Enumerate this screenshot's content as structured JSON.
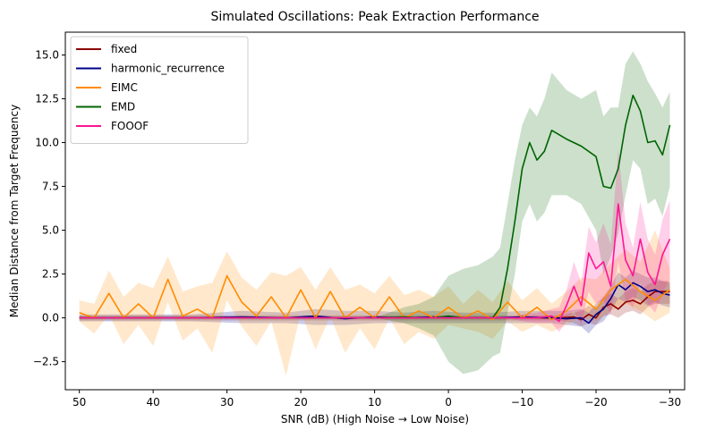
{
  "chart_data": {
    "type": "line",
    "title": "Simulated Oscillations: Peak Extraction Performance",
    "xlabel": "SNR (dB) (High Noise → Low Noise)",
    "ylabel": "Median Distance from Target Frequency",
    "xlim": [
      51.9,
      -32.0
    ],
    "ylim": [
      -4.1,
      16.3
    ],
    "xticks": [
      50,
      40,
      30,
      20,
      10,
      0,
      -10,
      -20,
      -30
    ],
    "xtick_labels": [
      "50",
      "40",
      "30",
      "20",
      "10",
      "0",
      "−10",
      "−20",
      "−30"
    ],
    "yticks": [
      -2.5,
      0.0,
      2.5,
      5.0,
      7.5,
      10.0,
      12.5,
      15.0
    ],
    "ytick_labels": [
      "−2.5",
      "0.0",
      "2.5",
      "5.0",
      "7.5",
      "10.0",
      "12.5",
      "15.0"
    ],
    "grid": false,
    "legend_position": "top-left",
    "series": [
      {
        "name": "fixed",
        "color": "#8b0000",
        "x": [
          50,
          -15,
          -17,
          -18,
          -19,
          -20,
          -21,
          -22,
          -23,
          -24,
          -25,
          -26,
          -27,
          -28,
          -29,
          -30
        ],
        "y": [
          0.0,
          0.0,
          0.05,
          -0.1,
          0.2,
          0.0,
          0.6,
          0.8,
          0.5,
          0.9,
          1.0,
          0.8,
          1.2,
          1.5,
          1.5,
          1.5
        ],
        "lower": [
          -0.15,
          -0.15,
          -0.3,
          -0.5,
          -0.3,
          -0.4,
          0.1,
          0.2,
          0.0,
          0.3,
          0.4,
          0.2,
          0.6,
          0.8,
          0.8,
          0.8
        ],
        "upper": [
          0.15,
          0.15,
          0.3,
          0.4,
          0.7,
          0.5,
          1.2,
          1.4,
          1.1,
          1.5,
          1.7,
          1.5,
          1.9,
          2.1,
          2.1,
          2.1
        ]
      },
      {
        "name": "harmonic_recurrence",
        "color": "#00008b",
        "x": [
          50,
          35,
          28,
          22,
          18,
          14,
          10,
          6,
          2,
          -2,
          -6,
          -10,
          -14,
          -16,
          -18,
          -19,
          -20,
          -21,
          -22,
          -23,
          -24,
          -25,
          -26,
          -27,
          -28,
          -29,
          -30
        ],
        "y": [
          0.0,
          0.0,
          0.05,
          0.0,
          0.1,
          -0.05,
          0.05,
          0.0,
          0.05,
          0.0,
          0.0,
          0.05,
          0.0,
          -0.05,
          0.0,
          -0.3,
          0.2,
          0.5,
          1.1,
          1.9,
          1.6,
          2.0,
          1.8,
          1.5,
          1.6,
          1.4,
          1.3
        ],
        "lower": [
          -0.2,
          -0.2,
          -0.3,
          -0.3,
          -0.4,
          -0.4,
          -0.3,
          -0.3,
          -0.3,
          -0.3,
          -0.3,
          -0.3,
          -0.3,
          -0.4,
          -0.5,
          -0.9,
          -0.4,
          -0.2,
          0.4,
          1.1,
          0.9,
          1.2,
          1.0,
          0.7,
          0.9,
          0.7,
          0.6
        ],
        "upper": [
          0.2,
          0.2,
          0.4,
          0.3,
          0.5,
          0.4,
          0.4,
          0.3,
          0.4,
          0.3,
          0.3,
          0.4,
          0.4,
          0.4,
          0.5,
          0.3,
          0.8,
          1.2,
          1.8,
          2.6,
          2.3,
          2.7,
          2.5,
          2.3,
          2.3,
          2.1,
          2.0
        ]
      },
      {
        "name": "EIMC",
        "color": "#ff8c00",
        "x": [
          50,
          48,
          46,
          44,
          42,
          40,
          38,
          36,
          34,
          32,
          30,
          28,
          26,
          24,
          22,
          20,
          18,
          16,
          14,
          12,
          10,
          8,
          6,
          4,
          2,
          0,
          -2,
          -4,
          -6,
          -8,
          -10,
          -12,
          -14,
          -16,
          -18,
          -20,
          -22,
          -24,
          -26,
          -28,
          -30
        ],
        "y": [
          0.3,
          0.0,
          1.4,
          0.0,
          0.8,
          0.0,
          2.2,
          0.1,
          0.5,
          0.0,
          2.4,
          0.9,
          0.1,
          1.2,
          0.0,
          1.6,
          0.0,
          1.5,
          0.0,
          0.6,
          0.0,
          1.2,
          0.0,
          0.4,
          0.0,
          0.6,
          0.0,
          0.4,
          -0.1,
          0.9,
          0.0,
          0.6,
          -0.1,
          0.4,
          1.2,
          0.5,
          1.6,
          2.2,
          1.5,
          1.0,
          1.6
        ],
        "lower": [
          -0.2,
          -0.9,
          0.2,
          -1.5,
          -0.4,
          -1.6,
          0.9,
          -1.3,
          -0.6,
          -2.0,
          1.0,
          -0.5,
          -1.6,
          -0.2,
          -3.3,
          0.3,
          -1.8,
          0.1,
          -2.0,
          -0.6,
          -1.8,
          0.0,
          -1.5,
          -0.8,
          -1.2,
          -0.4,
          -0.6,
          -0.8,
          -1.2,
          -0.2,
          -0.8,
          -0.4,
          -0.8,
          -0.4,
          0.1,
          -0.2,
          0.4,
          0.8,
          0.4,
          -0.2,
          0.3
        ],
        "upper": [
          1.0,
          0.8,
          2.7,
          1.2,
          2.0,
          1.7,
          3.5,
          1.5,
          1.8,
          2.0,
          3.8,
          2.3,
          1.6,
          2.6,
          2.4,
          2.9,
          1.6,
          2.9,
          1.6,
          1.9,
          1.4,
          2.4,
          1.3,
          1.6,
          1.2,
          1.8,
          0.8,
          1.6,
          0.9,
          2.1,
          1.0,
          1.7,
          0.8,
          1.5,
          2.3,
          2.2,
          3.1,
          3.9,
          3.2,
          5.0,
          2.8
        ]
      },
      {
        "name": "EMD",
        "color": "#006400",
        "x": [
          50,
          10,
          6,
          4,
          2,
          0,
          -2,
          -4,
          -6,
          -7,
          -8,
          -9,
          -10,
          -11,
          -12,
          -13,
          -14,
          -16,
          -18,
          -20,
          -21,
          -22,
          -23,
          -24,
          -25,
          -26,
          -27,
          -28,
          -29,
          -30
        ],
        "y": [
          0.0,
          0.0,
          0.05,
          0.0,
          0.0,
          0.1,
          0.0,
          0.0,
          0.0,
          0.6,
          2.8,
          5.5,
          8.5,
          10.0,
          9.0,
          9.5,
          10.7,
          10.2,
          9.8,
          9.2,
          7.5,
          7.4,
          8.5,
          11.0,
          12.7,
          11.8,
          10.0,
          10.1,
          9.3,
          11.0
        ],
        "lower": [
          0.0,
          0.0,
          -0.3,
          -0.6,
          -1.0,
          -2.5,
          -3.2,
          -3.0,
          -2.2,
          -2.0,
          0.3,
          2.5,
          5.5,
          6.5,
          5.5,
          6.0,
          7.0,
          7.0,
          6.5,
          5.0,
          2.5,
          3.5,
          4.8,
          7.0,
          9.0,
          8.5,
          6.5,
          6.8,
          5.8,
          7.5
        ],
        "upper": [
          0.0,
          0.0,
          0.6,
          0.8,
          1.2,
          2.4,
          2.8,
          3.0,
          3.5,
          4.0,
          6.5,
          9.0,
          11.0,
          12.0,
          11.5,
          12.5,
          14.0,
          13.0,
          12.5,
          13.0,
          11.5,
          12.0,
          12.0,
          14.5,
          15.2,
          14.5,
          13.5,
          12.8,
          12.0,
          12.9
        ]
      },
      {
        "name": "FOOOF",
        "color": "#ff1493",
        "x": [
          50,
          -8,
          -10,
          -12,
          -14,
          -15,
          -16,
          -17,
          -18,
          -19,
          -20,
          -21,
          -22,
          -23,
          -24,
          -25,
          -26,
          -27,
          -28,
          -29,
          -30
        ],
        "y": [
          0.0,
          0.0,
          0.0,
          0.0,
          0.1,
          -0.2,
          0.7,
          1.8,
          0.7,
          3.7,
          2.8,
          3.2,
          1.8,
          6.5,
          3.3,
          2.4,
          4.5,
          2.6,
          1.9,
          3.6,
          4.5
        ],
        "lower": [
          0.0,
          0.0,
          -0.2,
          -0.3,
          -0.3,
          -0.8,
          -0.2,
          0.4,
          -0.4,
          1.5,
          0.8,
          1.0,
          0.2,
          3.2,
          1.0,
          0.6,
          2.0,
          0.8,
          0.3,
          1.4,
          2.2
        ],
        "upper": [
          0.0,
          0.0,
          0.2,
          0.3,
          0.5,
          0.6,
          1.6,
          3.2,
          2.0,
          5.2,
          4.3,
          5.4,
          4.2,
          9.6,
          5.4,
          4.0,
          6.6,
          4.5,
          3.6,
          5.6,
          6.7
        ]
      }
    ]
  }
}
